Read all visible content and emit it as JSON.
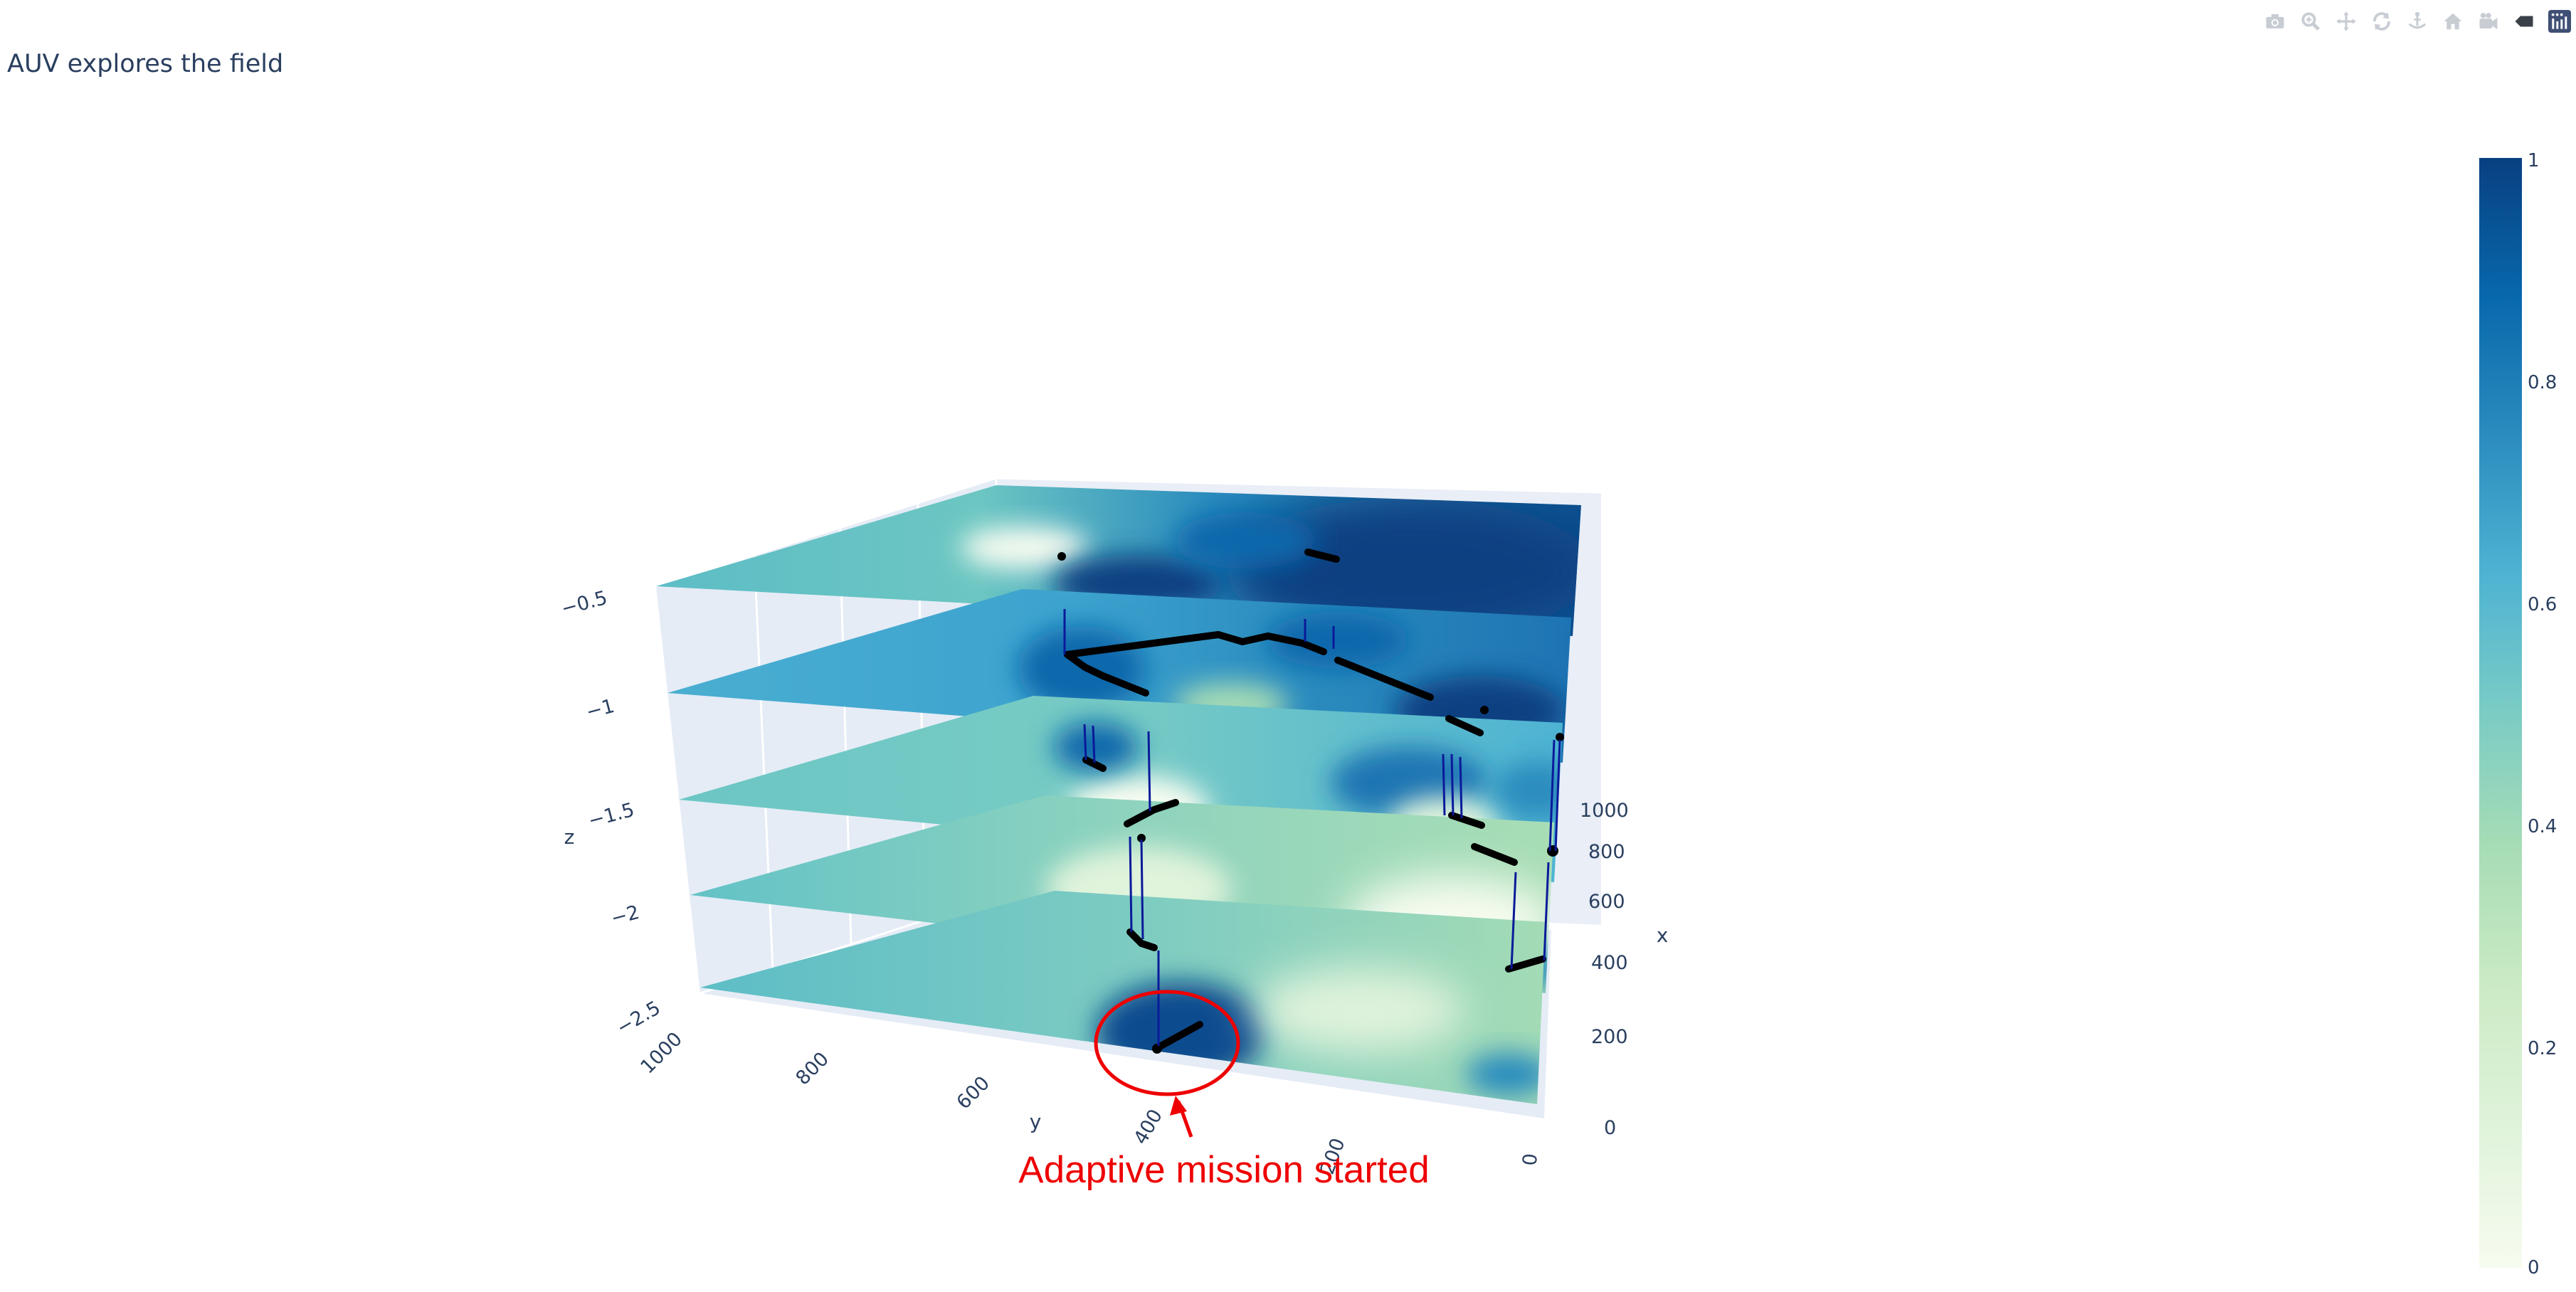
{
  "title": "AUV explores the field",
  "modebar": {
    "buttons": [
      {
        "name": "camera-icon",
        "tooltip": "Download plot as a png"
      },
      {
        "name": "zoom-icon",
        "tooltip": "Zoom"
      },
      {
        "name": "pan-icon",
        "tooltip": "Pan"
      },
      {
        "name": "orbit-rotation-icon",
        "tooltip": "Orbital rotation"
      },
      {
        "name": "turntable-rotation-icon",
        "tooltip": "Turntable rotation"
      },
      {
        "name": "home-icon",
        "tooltip": "Reset camera to default"
      },
      {
        "name": "camera-last-save-icon",
        "tooltip": "Reset camera to last save"
      },
      {
        "name": "hover-toggle-icon",
        "tooltip": "Toggle show closest data on hover"
      },
      {
        "name": "plotly-logo-icon",
        "tooltip": "Produced with Plotly"
      }
    ]
  },
  "chart_data": {
    "type": "surface",
    "title": "AUV explores the field",
    "xlabel": "x",
    "ylabel": "y",
    "zlabel": "z",
    "x_ticks": [
      "0",
      "200",
      "400",
      "600",
      "800",
      "1000"
    ],
    "y_ticks": [
      "1000",
      "800",
      "600",
      "400",
      "200",
      "0"
    ],
    "z_ticks": [
      "−0.5",
      "−1",
      "−1.5",
      "−2",
      "−2.5"
    ],
    "layers_z": [
      -0.5,
      -1,
      -1.5,
      -2,
      -2.5
    ],
    "colorscale": {
      "name": "GnBu",
      "min": 0,
      "max": 1,
      "ticks": [
        "1",
        "0.8",
        "0.6",
        "0.4",
        "0.2",
        "0"
      ],
      "stops": [
        "#f7fcf0",
        "#e0f3db",
        "#ccebc5",
        "#a8ddb5",
        "#7bccc4",
        "#4eb3d3",
        "#2b8cbe",
        "#0868ac",
        "#084081"
      ]
    },
    "annotation": {
      "text": "Adaptive mission started",
      "color": "#ee0000"
    },
    "trajectory_color": "#000000",
    "vertical_path_color": "#0a1a9a"
  }
}
